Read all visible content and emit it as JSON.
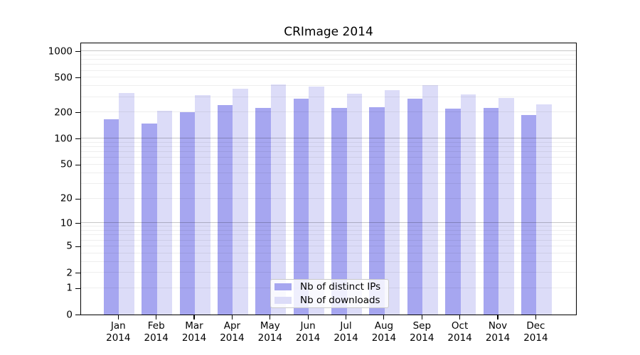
{
  "title": "CRImage 2014",
  "chart_data": {
    "type": "bar",
    "title": "CRImage 2014",
    "categories": [
      "Jan 2014",
      "Feb 2014",
      "Mar 2014",
      "Apr 2014",
      "May 2014",
      "Jun 2014",
      "Jul 2014",
      "Aug 2014",
      "Sep 2014",
      "Oct 2014",
      "Nov 2014",
      "Dec 2014"
    ],
    "series": [
      {
        "name": "Nb of distinct IPs",
        "color": "#a6a6f0",
        "values": [
          168,
          149,
          200,
          243,
          224,
          288,
          226,
          229,
          288,
          220,
          224,
          186
        ]
      },
      {
        "name": "Nb of downloads",
        "color": "#dcdcf8",
        "values": [
          331,
          208,
          318,
          376,
          416,
          396,
          326,
          360,
          413,
          320,
          292,
          248
        ]
      }
    ],
    "yscale": "log(1+x)",
    "ylim": [
      0,
      1280
    ],
    "xlabel": "",
    "ylabel": "",
    "y_ticks": {
      "values": [
        0,
        1,
        2,
        5,
        10,
        20,
        50,
        100,
        200,
        500,
        1000
      ],
      "labels": [
        "0",
        "1",
        "2",
        "5",
        "10",
        "20",
        "50",
        "100",
        "200",
        "500",
        "1000"
      ]
    },
    "minor_gridlines": [
      1,
      2,
      3,
      4,
      5,
      6,
      7,
      8,
      9,
      20,
      30,
      40,
      50,
      60,
      70,
      80,
      90,
      200,
      300,
      400,
      500,
      600,
      700,
      800,
      900
    ],
    "major_gridlines": [
      10,
      100,
      1000
    ],
    "grid": true,
    "legend_position": "bottom-center-inside",
    "colors": {
      "axis": "#000000",
      "minor_grid": "rgba(0,0,0,0.065)",
      "major_grid": "rgba(0,0,0,0.22)"
    }
  }
}
